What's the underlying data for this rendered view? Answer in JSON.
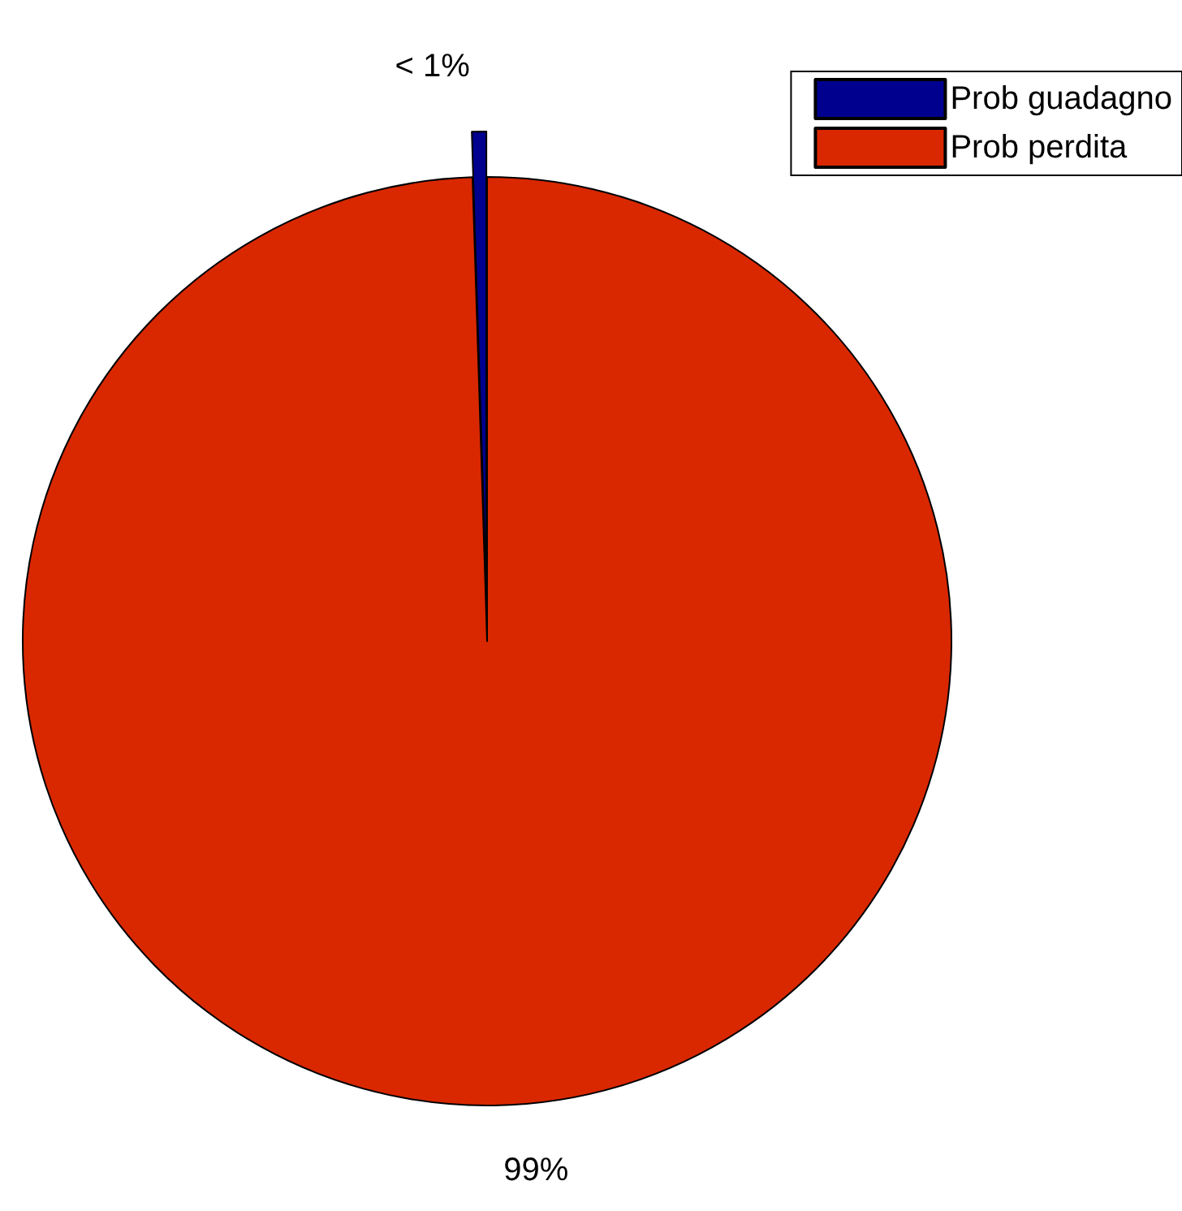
{
  "chart_data": {
    "type": "pie",
    "categories": [
      "Prob guadagno",
      "Prob perdita"
    ],
    "values": [
      0.5,
      99.5
    ],
    "colors": [
      "#00008f",
      "#d92800"
    ],
    "value_labels": [
      "< 1%",
      "99%"
    ],
    "legend": "top right"
  }
}
